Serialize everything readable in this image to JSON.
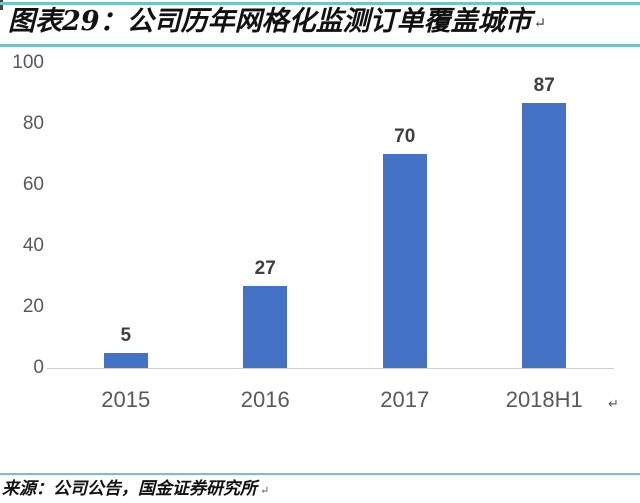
{
  "header": {
    "title": "图表29：公司历年网格化监测订单覆盖城市",
    "return_mark": "↵"
  },
  "footer": {
    "source": "来源：公司公告，国金证券研究所",
    "return_mark": "↵"
  },
  "colors": {
    "accent_teal": "#74c3cc",
    "bar_blue": "#4472c4",
    "axis_line": "#cfcfcf",
    "tick_text": "#595959",
    "data_label_text": "#3f3f3f"
  },
  "chart_data": {
    "type": "bar",
    "title": "公司历年网格化监测订单覆盖城市",
    "categories": [
      "2015",
      "2016",
      "2017",
      "2018H1"
    ],
    "values": [
      5,
      27,
      70,
      87
    ],
    "data_labels": [
      "5",
      "27",
      "70",
      "87"
    ],
    "xlabel": "",
    "ylabel": "",
    "ylim": [
      0,
      100
    ],
    "yticks": [
      0,
      20,
      40,
      60,
      80,
      100
    ],
    "grid": false,
    "legend": false,
    "bar_color": "#4472c4"
  }
}
